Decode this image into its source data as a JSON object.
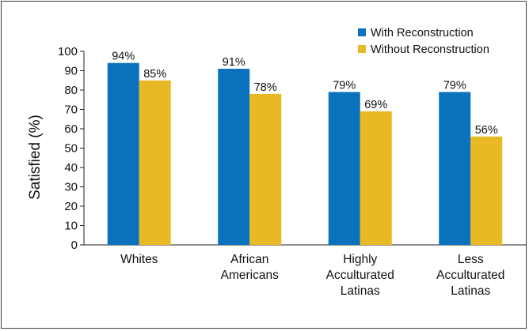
{
  "chart_data": {
    "type": "bar",
    "ylabel": "Satisfied (%)",
    "xlabel": "",
    "ylim": [
      0,
      100
    ],
    "yticks": [
      0,
      10,
      20,
      30,
      40,
      50,
      60,
      70,
      80,
      90,
      100
    ],
    "grid": false,
    "legend_position": "top-right",
    "categories": [
      [
        "Whites"
      ],
      [
        "African",
        "Americans"
      ],
      [
        "Highly",
        "Acculturated",
        "Latinas"
      ],
      [
        "Less",
        "Acculturated",
        "Latinas"
      ]
    ],
    "series": [
      {
        "name": "With Reconstruction",
        "color": "#0a72bd",
        "values": [
          94,
          91,
          79,
          79
        ],
        "labels": [
          "94%",
          "91%",
          "79%",
          "79%"
        ]
      },
      {
        "name": "Without Reconstruction",
        "color": "#e8b925",
        "values": [
          85,
          78,
          69,
          56
        ],
        "labels": [
          "85%",
          "78%",
          "69%",
          "56%"
        ]
      }
    ]
  }
}
